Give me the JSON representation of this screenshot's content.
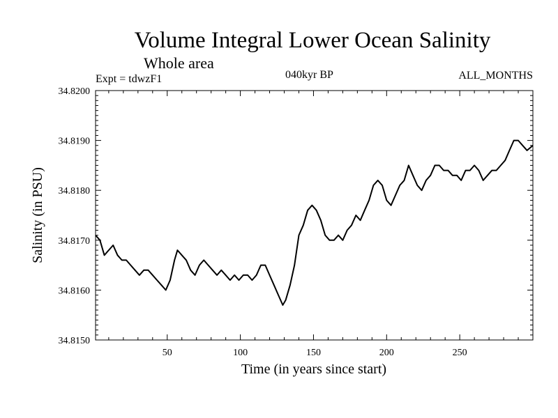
{
  "chart_data": {
    "type": "line",
    "title": "Volume Integral Lower Ocean Salinity",
    "subtitle": "Whole area",
    "experiment": "Expt = tdwzF1",
    "period": "040kyr BP",
    "months": "ALL_MONTHS",
    "xlabel": "Time (in years since start)",
    "ylabel": "Salinity (in PSU)",
    "xlim": [
      1,
      300
    ],
    "ylim": [
      34.815,
      34.82
    ],
    "xticks": [
      50,
      100,
      150,
      200,
      250
    ],
    "xtick_labels": [
      "50",
      "100",
      "150",
      "200",
      "250"
    ],
    "yticks": [
      34.815,
      34.816,
      34.817,
      34.818,
      34.819,
      34.82
    ],
    "ytick_labels": [
      "34.8150",
      "34.8160",
      "34.8170",
      "34.8180",
      "34.8190",
      "34.8200"
    ],
    "grid": false,
    "series": [
      {
        "name": "Salinity",
        "x": [
          1,
          4,
          7,
          10,
          13,
          16,
          19,
          22,
          25,
          28,
          31,
          34,
          37,
          40,
          43,
          46,
          49,
          52,
          55,
          57,
          60,
          63,
          66,
          69,
          72,
          75,
          78,
          81,
          84,
          87,
          90,
          93,
          96,
          99,
          102,
          105,
          108,
          111,
          114,
          117,
          120,
          123,
          126,
          129,
          131,
          134,
          137,
          140,
          143,
          146,
          149,
          152,
          155,
          158,
          161,
          164,
          167,
          170,
          173,
          176,
          179,
          182,
          185,
          188,
          191,
          194,
          197,
          200,
          203,
          206,
          209,
          212,
          215,
          218,
          221,
          224,
          227,
          230,
          233,
          236,
          239,
          242,
          245,
          248,
          251,
          254,
          257,
          260,
          263,
          266,
          269,
          272,
          275,
          278,
          281,
          284,
          287,
          290,
          293,
          296,
          300
        ],
        "values": [
          34.8171,
          34.817,
          34.8167,
          34.8168,
          34.8169,
          34.8167,
          34.8166,
          34.8166,
          34.8165,
          34.8164,
          34.8163,
          34.8164,
          34.8164,
          34.8163,
          34.8162,
          34.8161,
          34.816,
          34.8162,
          34.8166,
          34.8168,
          34.8167,
          34.8166,
          34.8164,
          34.8163,
          34.8165,
          34.8166,
          34.8165,
          34.8164,
          34.8163,
          34.8164,
          34.8163,
          34.8162,
          34.8163,
          34.8162,
          34.8163,
          34.8163,
          34.8162,
          34.8163,
          34.8165,
          34.8165,
          34.8163,
          34.8161,
          34.8159,
          34.8157,
          34.8158,
          34.8161,
          34.8165,
          34.8171,
          34.8173,
          34.8176,
          34.8177,
          34.8176,
          34.8174,
          34.8171,
          34.817,
          34.817,
          34.8171,
          34.817,
          34.8172,
          34.8173,
          34.8175,
          34.8174,
          34.8176,
          34.8178,
          34.8181,
          34.8182,
          34.8181,
          34.8178,
          34.8177,
          34.8179,
          34.8181,
          34.8182,
          34.8185,
          34.8183,
          34.8181,
          34.818,
          34.8182,
          34.8183,
          34.8185,
          34.8185,
          34.8184,
          34.8184,
          34.8183,
          34.8183,
          34.8182,
          34.8184,
          34.8184,
          34.8185,
          34.8184,
          34.8182,
          34.8183,
          34.8184,
          34.8184,
          34.8185,
          34.8186,
          34.8188,
          34.819,
          34.819,
          34.8189,
          34.8188,
          34.8189
        ]
      }
    ]
  }
}
